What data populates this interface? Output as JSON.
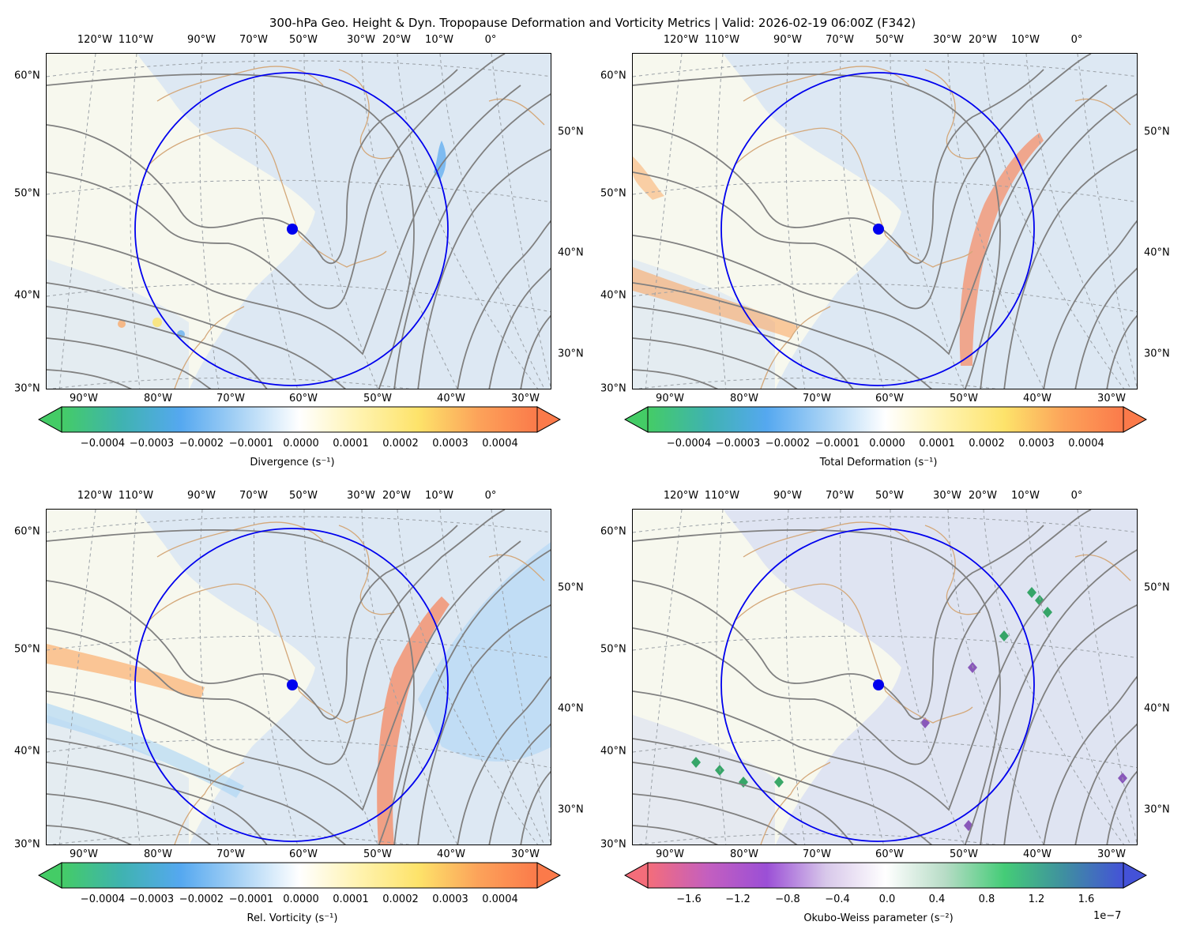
{
  "title": "300-hPa Geo. Height & Dyn. Tropopause Deformation and Vorticity Metrics |  Valid: 2026-02-19 06:00Z (F342)",
  "map_labels": {
    "top_lon": [
      "120°W",
      "110°W",
      "90°W",
      "70°W",
      "50°W",
      "30°W",
      "20°W",
      "10°W",
      "0°"
    ],
    "bottom_lon": [
      "90°W",
      "80°W",
      "70°W",
      "60°W",
      "50°W",
      "40°W",
      "30°W"
    ],
    "left_lat": [
      "60°N",
      "50°N",
      "40°N",
      "30°N"
    ],
    "right_lat": [
      "50°N",
      "40°N",
      "30°N"
    ]
  },
  "marker": {
    "shape": "filled-circle",
    "color": "#0000ee",
    "ring_color": "#0000ee"
  },
  "panels": [
    {
      "id": "divergence",
      "colorbar_label": "Divergence (s⁻¹)",
      "colorbar_ticks": [
        "−0.0004",
        "−0.0003",
        "−0.0002",
        "−0.0001",
        "0.0000",
        "0.0001",
        "0.0002",
        "0.0003",
        "0.0004"
      ],
      "colormap": [
        "#44cc66",
        "#3fb3b0",
        "#55a8f0",
        "#a9d3f5",
        "#ffffff",
        "#fff3b0",
        "#fde36a",
        "#fca35a",
        "#fb7a4a"
      ],
      "offset": ""
    },
    {
      "id": "total-deformation",
      "colorbar_label": "Total Deformation (s⁻¹)",
      "colorbar_ticks": [
        "−0.0004",
        "−0.0003",
        "−0.0002",
        "−0.0001",
        "0.0000",
        "0.0001",
        "0.0002",
        "0.0003",
        "0.0004"
      ],
      "colormap": [
        "#44cc66",
        "#3fb3b0",
        "#55a8f0",
        "#a9d3f5",
        "#ffffff",
        "#fff3b0",
        "#fde36a",
        "#fca35a",
        "#fb7a4a"
      ],
      "offset": ""
    },
    {
      "id": "relative-vorticity",
      "colorbar_label": "Rel. Vorticity (s⁻¹)",
      "colorbar_ticks": [
        "−0.0004",
        "−0.0003",
        "−0.0002",
        "−0.0001",
        "0.0000",
        "0.0001",
        "0.0002",
        "0.0003",
        "0.0004"
      ],
      "colormap": [
        "#44cc66",
        "#3fb3b0",
        "#55a8f0",
        "#a9d3f5",
        "#ffffff",
        "#fff3b0",
        "#fde36a",
        "#fca35a",
        "#fb7a4a"
      ],
      "offset": ""
    },
    {
      "id": "okubo-weiss",
      "colorbar_label": "Okubo-Weiss parameter (s⁻²)",
      "colorbar_ticks": [
        "−1.6",
        "−1.2",
        "−0.8",
        "−0.4",
        "0.0",
        "0.4",
        "0.8",
        "1.2",
        "1.6"
      ],
      "colormap": [
        "#f46d7a",
        "#c45fbf",
        "#9b4fd6",
        "#d8c8ea",
        "#ffffff",
        "#b7dcc6",
        "#44cc77",
        "#3f8fa0",
        "#4452d8"
      ],
      "offset": "1e−7"
    }
  ]
}
